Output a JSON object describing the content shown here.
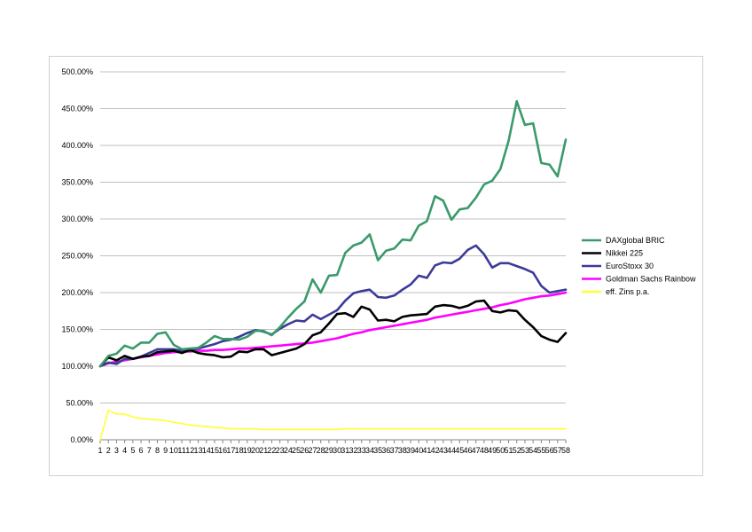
{
  "chart_data": {
    "type": "line",
    "title": "",
    "xlabel": "",
    "ylabel": "",
    "ylim": [
      0,
      500
    ],
    "y_ticks": [
      "0.00%",
      "50.00%",
      "100.00%",
      "150.00%",
      "200.00%",
      "250.00%",
      "300.00%",
      "350.00%",
      "400.00%",
      "450.00%",
      "500.00%"
    ],
    "y_tick_values": [
      0,
      50,
      100,
      150,
      200,
      250,
      300,
      350,
      400,
      450,
      500
    ],
    "x": [
      1,
      2,
      3,
      4,
      5,
      6,
      7,
      8,
      9,
      10,
      11,
      12,
      13,
      14,
      15,
      16,
      17,
      18,
      19,
      20,
      21,
      22,
      23,
      24,
      25,
      26,
      27,
      28,
      29,
      30,
      31,
      32,
      33,
      34,
      35,
      36,
      37,
      38,
      39,
      40,
      41,
      42,
      43,
      44,
      45,
      46,
      47,
      48,
      49,
      50,
      51,
      52,
      53,
      54,
      55,
      56,
      57,
      58
    ],
    "grid": true,
    "legend_position": "right",
    "series": [
      {
        "name": "DAXglobal BRIC",
        "color": "#3a9a6a",
        "values": [
          100,
          114,
          117,
          128,
          124,
          132,
          132,
          144,
          146,
          129,
          123,
          124,
          125,
          132,
          141,
          137,
          137,
          136,
          140,
          148,
          148,
          142,
          153,
          166,
          178,
          188,
          218,
          200,
          223,
          224,
          254,
          264,
          268,
          279,
          244,
          257,
          260,
          272,
          271,
          291,
          297,
          331,
          325,
          299,
          313,
          315,
          329,
          347,
          352,
          368,
          406,
          460,
          428,
          430,
          376,
          374,
          358,
          408
        ]
      },
      {
        "name": "Nikkei 225",
        "color": "#000000",
        "values": [
          100,
          112,
          108,
          114,
          110,
          113,
          114,
          119,
          120,
          121,
          118,
          122,
          118,
          116,
          115,
          112,
          113,
          120,
          119,
          123,
          123,
          115,
          118,
          121,
          124,
          130,
          142,
          146,
          158,
          171,
          172,
          167,
          181,
          177,
          162,
          163,
          161,
          167,
          169,
          170,
          171,
          181,
          183,
          182,
          179,
          182,
          188,
          189,
          175,
          173,
          176,
          175,
          163,
          153,
          141,
          136,
          133,
          145
        ]
      },
      {
        "name": "EuroStoxx 30",
        "color": "#3b3b98",
        "values": [
          100,
          105,
          103,
          110,
          110,
          113,
          118,
          123,
          123,
          123,
          121,
          122,
          124,
          127,
          130,
          134,
          136,
          140,
          145,
          149,
          147,
          143,
          151,
          157,
          162,
          161,
          170,
          164,
          170,
          176,
          189,
          199,
          202,
          204,
          194,
          193,
          196,
          204,
          211,
          223,
          220,
          237,
          241,
          240,
          246,
          258,
          264,
          252,
          234,
          240,
          240,
          236,
          232,
          227,
          209,
          200,
          202,
          204
        ]
      },
      {
        "name": "Goldman Sachs Rainbow",
        "color": "#ff00ff",
        "values": [
          100,
          104,
          106,
          108,
          110,
          112,
          114,
          116,
          118,
          119,
          120,
          120,
          121,
          121,
          122,
          122,
          123,
          124,
          124,
          125,
          126,
          127,
          128,
          129,
          130,
          131,
          132,
          134,
          136,
          138,
          141,
          144,
          146,
          149,
          151,
          153,
          155,
          157,
          159,
          161,
          163,
          166,
          168,
          170,
          172,
          174,
          176,
          178,
          180,
          183,
          185,
          188,
          191,
          193,
          195,
          196,
          198,
          200
        ]
      },
      {
        "name": "eff. Zins p.a.",
        "color": "#ffff33",
        "values": [
          0,
          40,
          35,
          35,
          31,
          29,
          28,
          27,
          26,
          24,
          22,
          20,
          19,
          18,
          17,
          16,
          15,
          15,
          15,
          15,
          14,
          14,
          14,
          14,
          14,
          14,
          14,
          14,
          14,
          14,
          15,
          15,
          15,
          15,
          15,
          15,
          15,
          15,
          15,
          15,
          15,
          15,
          15,
          15,
          15,
          15,
          15,
          15,
          15,
          15,
          15,
          15,
          15,
          15,
          15,
          15,
          15,
          15
        ]
      }
    ]
  }
}
